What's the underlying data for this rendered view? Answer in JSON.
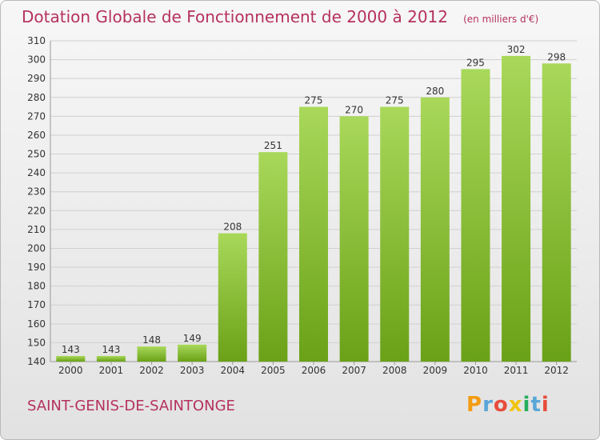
{
  "title": "Dotation Globale de Fonctionnement de 2000 à 2012",
  "unit_note": "(en milliers d'€)",
  "commune": "SAINT-GENIS-DE-SAINTONGE",
  "logo": {
    "text": "Proxiti",
    "letters": [
      {
        "ch": "P",
        "color": "#f39c12"
      },
      {
        "ch": "r",
        "color": "#5aa6d8"
      },
      {
        "ch": "o",
        "color": "#e74c3c"
      },
      {
        "ch": "x",
        "color": "#f1c40f"
      },
      {
        "ch": "i",
        "color": "#27ae60"
      },
      {
        "ch": "t",
        "color": "#5aa6d8"
      },
      {
        "ch": "i",
        "color": "#e74c3c"
      }
    ]
  },
  "colors": {
    "bar_light": "#a9d85a",
    "bar_dark": "#6aa117",
    "title": "#b5315f",
    "grid": "#d0d0d0"
  },
  "chart_data": {
    "type": "bar",
    "title": "Dotation Globale de Fonctionnement de 2000 à 2012",
    "subtitle": "(en milliers d'€)",
    "categories": [
      "2000",
      "2001",
      "2002",
      "2003",
      "2004",
      "2005",
      "2006",
      "2007",
      "2008",
      "2009",
      "2010",
      "2011",
      "2012"
    ],
    "values": [
      143,
      143,
      148,
      149,
      208,
      251,
      275,
      270,
      275,
      280,
      295,
      302,
      298
    ],
    "ylim": [
      140,
      310
    ],
    "yticks": [
      140,
      150,
      160,
      170,
      180,
      190,
      200,
      210,
      220,
      230,
      240,
      250,
      260,
      270,
      280,
      290,
      300,
      310
    ],
    "grid": true,
    "xlabel": "",
    "ylabel": ""
  }
}
